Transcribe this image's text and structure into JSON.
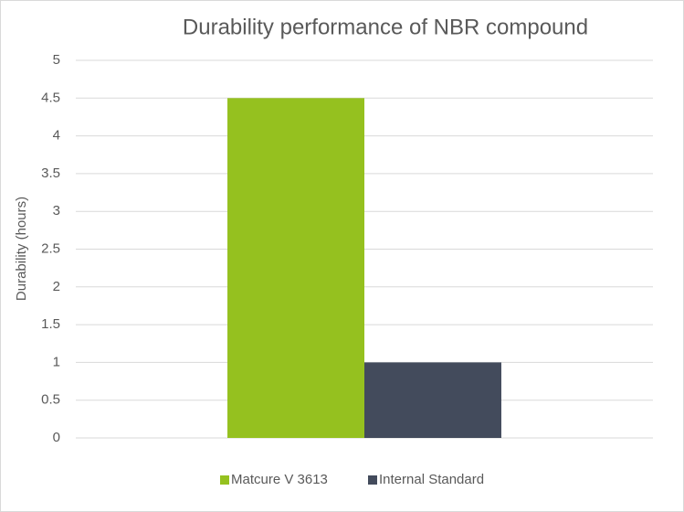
{
  "chart_data": {
    "type": "bar",
    "title": "Durability performance of NBR compound",
    "y_label": "Durability (hours)",
    "categories": [
      null
    ],
    "series": [
      {
        "name": "Matcure V 3613",
        "color": "#95c11f",
        "values": [
          4.5
        ]
      },
      {
        "name": "Internal Standard",
        "color": "#434b5c",
        "values": [
          1
        ]
      }
    ],
    "ylim": [
      0,
      5
    ],
    "yticks": [
      0,
      0.5,
      1,
      1.5,
      2,
      2.5,
      3,
      3.5,
      4,
      4.5,
      5
    ],
    "grid": true,
    "legend": "bottom"
  }
}
